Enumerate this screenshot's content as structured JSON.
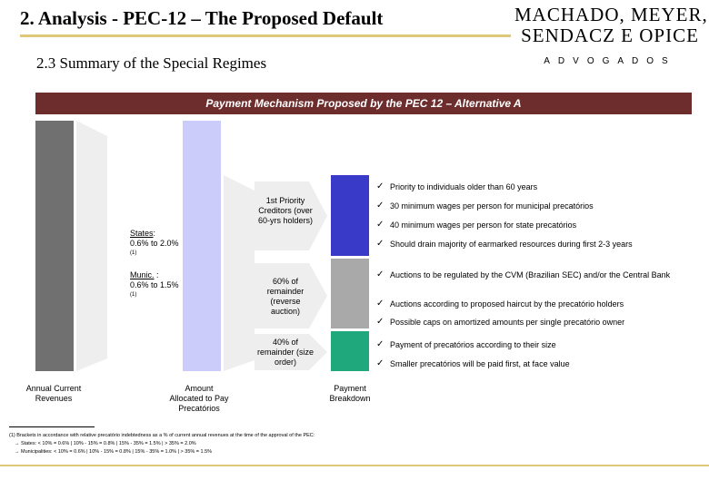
{
  "header": {
    "title": "2. Analysis - PEC-12 – The Proposed Default",
    "subtitle": "2.3 Summary of the Special Regimes",
    "logo": {
      "line1": "MACHADO, MEYER,",
      "line2": "SENDACZ E OPICE",
      "line3": "ADVOGADOS"
    }
  },
  "banner": "Payment Mechanism Proposed by the PEC 12 – Alternative A",
  "columns": {
    "annual": "Annual Current Revenues",
    "allocated": "Amount Allocated to Pay Precatórios",
    "breakdown": "Payment Breakdown"
  },
  "rates": {
    "states_label": "States",
    "states_value": "0.6% to 2.0%",
    "states_note": "(1)",
    "munic_label": "Munic.",
    "munic_value": "0.6% to 1.5%",
    "munic_note": "(1)"
  },
  "segments": [
    {
      "label": "1st Priority Creditors (over 60-yrs holders)",
      "color": "#3a3ac8",
      "bullets": [
        "Priority to individuals older than 60 years",
        "30 minimum wages per person for municipal precatórios",
        "40 minimum wages per person for state precatórios",
        "Should drain majority of earmarked resources during first 2-3 years"
      ]
    },
    {
      "label": "60% of remainder (reverse auction)",
      "color": "#a9a9a9",
      "bullets": [
        "Auctions to be regulated by the CVM (Brazilian SEC) and/or the Central Bank",
        "Auctions according to proposed haircut by the precatório holders",
        "Possible caps on amortized amounts per single precatório owner"
      ]
    },
    {
      "label": "40% of remainder (size order)",
      "color": "#1ea87c",
      "bullets": [
        "Payment of precatórios according to their size",
        "Smaller precatórios will be paid first, at face value"
      ]
    }
  ],
  "footnotes": [
    "(1) Brackets in accordance with relative precatório indebtedness as a % of current annual revenues at the time of the approval of the PEC:",
    "→ States: < 10% = 0.6% | 10% - 15% = 0.8% | 15% - 35% = 1.5% | > 35% = 2.0%",
    "→ Municipalities: < 10% = 0.6% | 10% - 15% = 0.8% | 15% - 35% = 1.0% | > 35% = 1.5%"
  ],
  "check_glyph": "✓"
}
